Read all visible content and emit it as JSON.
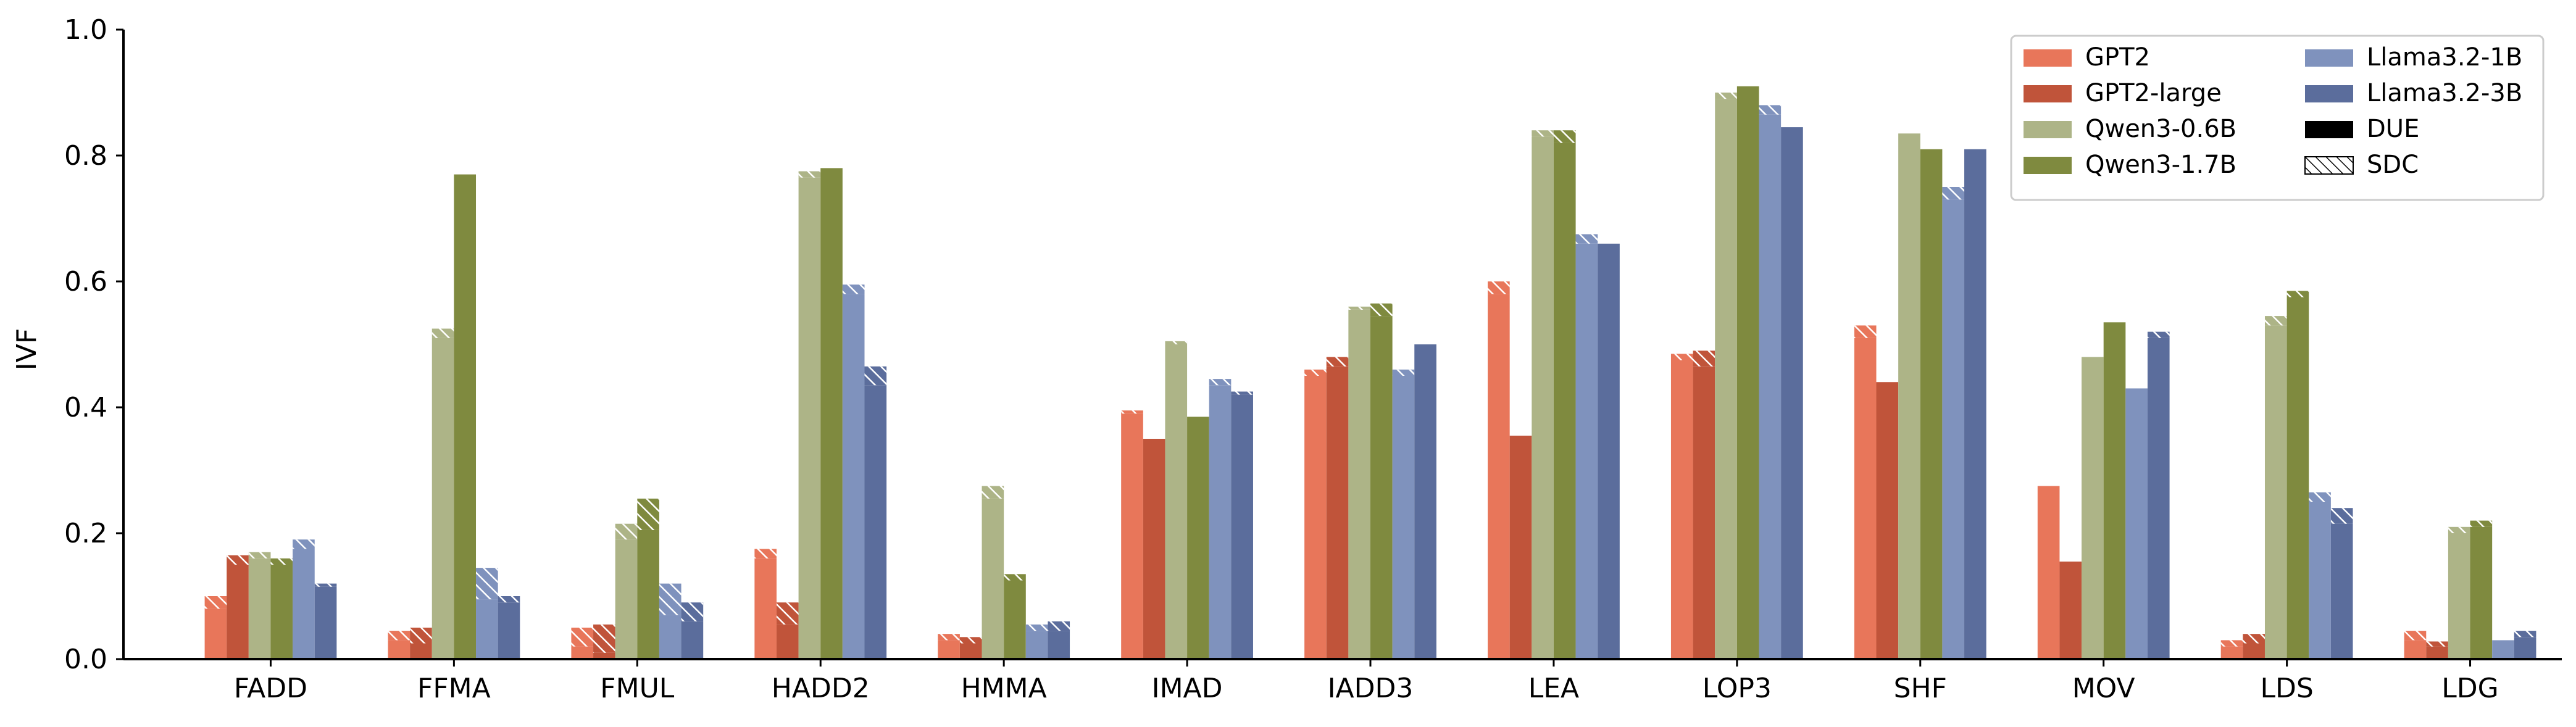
{
  "chart_data": {
    "type": "bar",
    "ylabel": "IVF",
    "xlabel": "",
    "ylim": [
      0,
      1.0
    ],
    "yticks": [
      "0.0",
      "0.2",
      "0.4",
      "0.6",
      "0.8",
      "1.0"
    ],
    "legend_placement": "top-right",
    "grid": false,
    "categories": [
      "FADD",
      "FFMA",
      "FMUL",
      "HADD2",
      "HMMA",
      "IMAD",
      "IADD3",
      "LEA",
      "LOP3",
      "SHF",
      "MOV",
      "LDS",
      "LDG"
    ],
    "series": [
      {
        "name": "GPT2",
        "color": "#E8765A",
        "due": [
          0.08,
          0.03,
          0.02,
          0.16,
          0.03,
          0.39,
          0.45,
          0.58,
          0.475,
          0.51,
          0.275,
          0.02,
          0.03
        ],
        "sdc": [
          0.02,
          0.015,
          0.03,
          0.015,
          0.01,
          0.005,
          0.01,
          0.02,
          0.01,
          0.02,
          0.0,
          0.01,
          0.015
        ]
      },
      {
        "name": "GPT2-large",
        "color": "#C0543A",
        "due": [
          0.15,
          0.025,
          0.01,
          0.055,
          0.025,
          0.35,
          0.465,
          0.355,
          0.465,
          0.44,
          0.155,
          0.025,
          0.02
        ],
        "sdc": [
          0.015,
          0.025,
          0.045,
          0.035,
          0.01,
          0.0,
          0.015,
          0.0,
          0.025,
          0.0,
          0.0,
          0.015,
          0.008
        ]
      },
      {
        "name": "Qwen3-0.6B",
        "color": "#ADB487",
        "due": [
          0.16,
          0.51,
          0.19,
          0.765,
          0.255,
          0.5,
          0.555,
          0.83,
          0.89,
          0.835,
          0.48,
          0.53,
          0.2
        ],
        "sdc": [
          0.01,
          0.015,
          0.025,
          0.01,
          0.02,
          0.005,
          0.005,
          0.01,
          0.01,
          0.0,
          0.0,
          0.015,
          0.01
        ]
      },
      {
        "name": "Qwen3-1.7B",
        "color": "#7F8A3F",
        "due": [
          0.15,
          0.77,
          0.205,
          0.78,
          0.125,
          0.385,
          0.545,
          0.82,
          0.91,
          0.81,
          0.535,
          0.575,
          0.21
        ],
        "sdc": [
          0.01,
          0.0,
          0.05,
          0.0,
          0.01,
          0.0,
          0.02,
          0.02,
          0.0,
          0.0,
          0.0,
          0.01,
          0.01
        ]
      },
      {
        "name": "Llama3.2-1B",
        "color": "#7F92BD",
        "due": [
          0.175,
          0.095,
          0.07,
          0.58,
          0.045,
          0.435,
          0.45,
          0.66,
          0.865,
          0.73,
          0.43,
          0.25,
          0.03
        ],
        "sdc": [
          0.015,
          0.05,
          0.05,
          0.015,
          0.01,
          0.01,
          0.01,
          0.015,
          0.015,
          0.02,
          0.0,
          0.015,
          0.0
        ]
      },
      {
        "name": "Llama3.2-3B",
        "color": "#5B6D9C",
        "due": [
          0.115,
          0.09,
          0.06,
          0.435,
          0.045,
          0.42,
          0.5,
          0.66,
          0.845,
          0.81,
          0.51,
          0.215,
          0.035
        ],
        "sdc": [
          0.005,
          0.01,
          0.03,
          0.03,
          0.015,
          0.005,
          0.0,
          0.0,
          0.0,
          0.0,
          0.01,
          0.025,
          0.01
        ]
      }
    ],
    "legend_items": [
      {
        "label": "GPT2",
        "color": "#E8765A",
        "kind": "solid"
      },
      {
        "label": "GPT2-large",
        "color": "#C0543A",
        "kind": "solid"
      },
      {
        "label": "Qwen3-0.6B",
        "color": "#ADB487",
        "kind": "solid"
      },
      {
        "label": "Qwen3-1.7B",
        "color": "#7F8A3F",
        "kind": "solid"
      },
      {
        "label": "Llama3.2-1B",
        "color": "#7F92BD",
        "kind": "solid"
      },
      {
        "label": "Llama3.2-3B",
        "color": "#5B6D9C",
        "kind": "solid"
      },
      {
        "label": "DUE",
        "color": "#000000",
        "kind": "solid"
      },
      {
        "label": "SDC",
        "color": "#000000",
        "kind": "hatch"
      }
    ]
  }
}
